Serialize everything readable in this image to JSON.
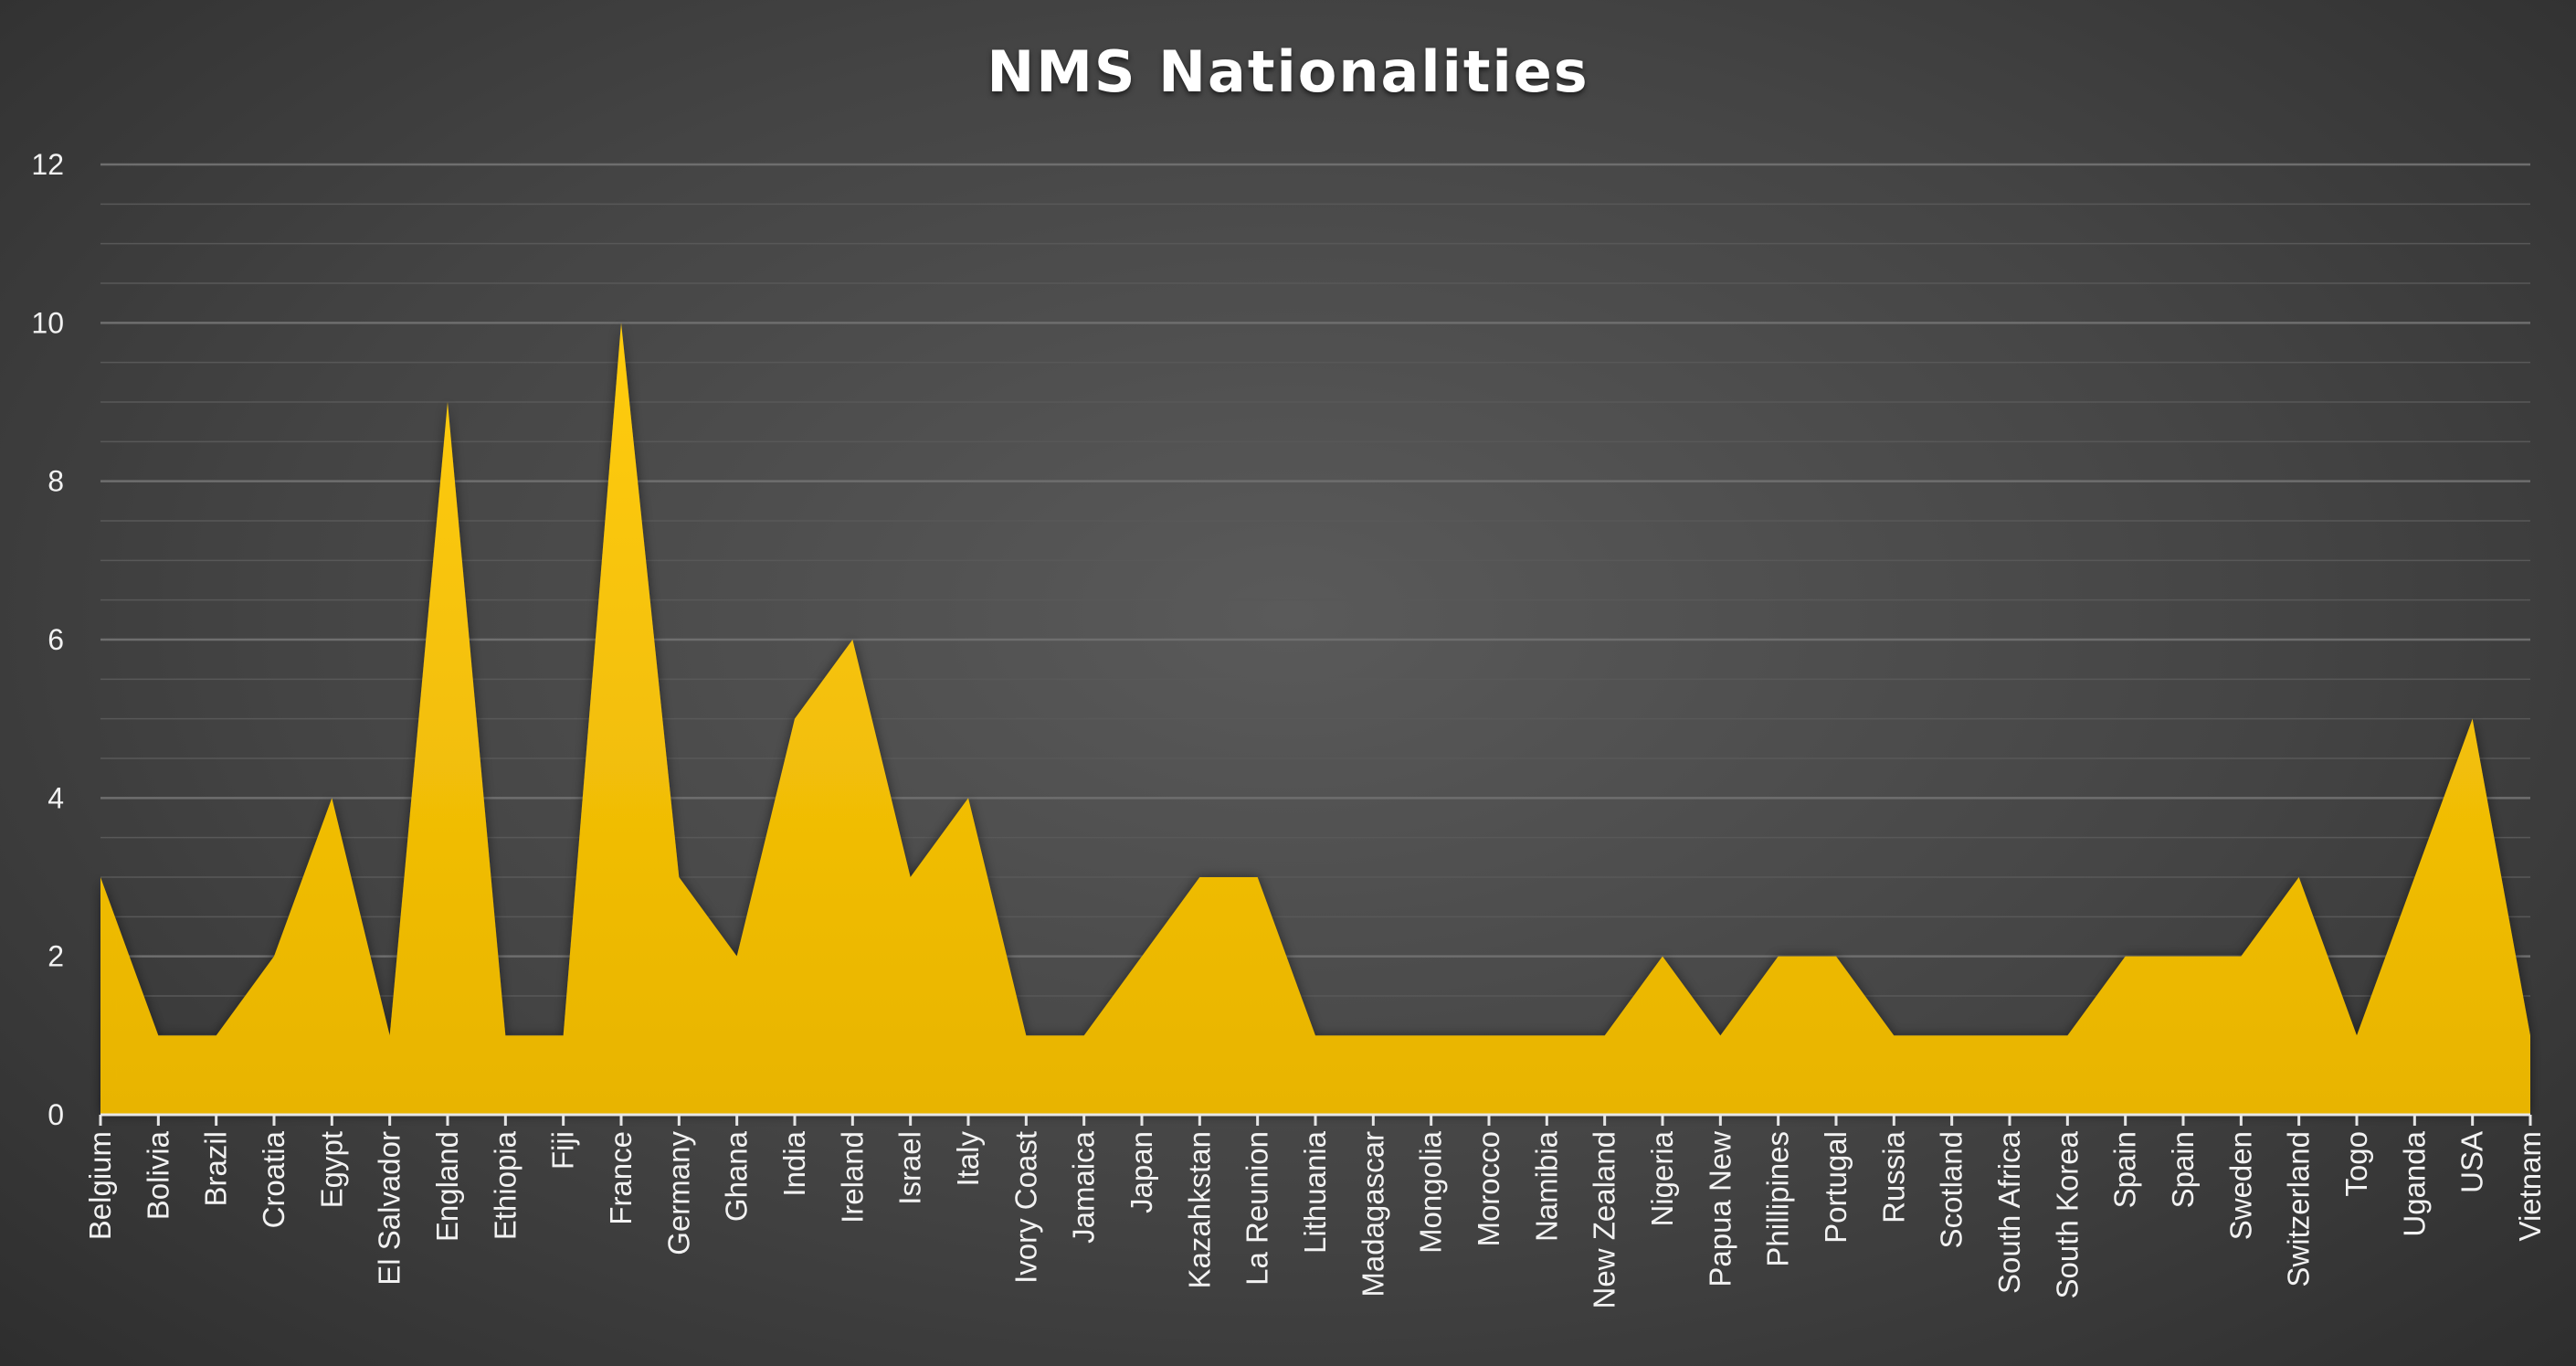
{
  "chart_data": {
    "type": "area",
    "title": "NMS Nationalities",
    "xlabel": "",
    "ylabel": "",
    "ylim": [
      0,
      12
    ],
    "yticks": [
      "0",
      "2",
      "4",
      "6",
      "8",
      "10",
      "12"
    ],
    "grid": true,
    "legend": "none",
    "fill_color": "#F5C200",
    "categories": [
      "Belgium",
      "Bolivia",
      "Brazil",
      "Croatia",
      "Egypt",
      "El Salvador",
      "England",
      "Ethiopia",
      "Fiji",
      "France",
      "Germany",
      "Ghana",
      "India",
      "Ireland",
      "Israel",
      "Italy",
      "Ivory Coast",
      "Jamaica",
      "Japan",
      "Kazahkstan",
      "La Reunion",
      "Lithuania",
      "Madagascar",
      "Mongolia",
      "Morocco",
      "Namibia",
      "New Zealand",
      "Nigeria",
      "Papua New",
      "Phillipines",
      "Portugal",
      "Russia",
      "Scotland",
      "South Africa",
      "South Korea",
      "Spain",
      "Spain",
      "Sweden",
      "Switzerland",
      "Togo",
      "Uganda",
      "USA",
      "Vietnam"
    ],
    "values": [
      3,
      1,
      1,
      2,
      4,
      1,
      9,
      1,
      1,
      10,
      3,
      2,
      5,
      6,
      3,
      4,
      1,
      1,
      2,
      3,
      3,
      1,
      1,
      1,
      1,
      1,
      1,
      2,
      1,
      2,
      2,
      1,
      1,
      1,
      1,
      2,
      2,
      2,
      3,
      1,
      3,
      5,
      1
    ]
  }
}
